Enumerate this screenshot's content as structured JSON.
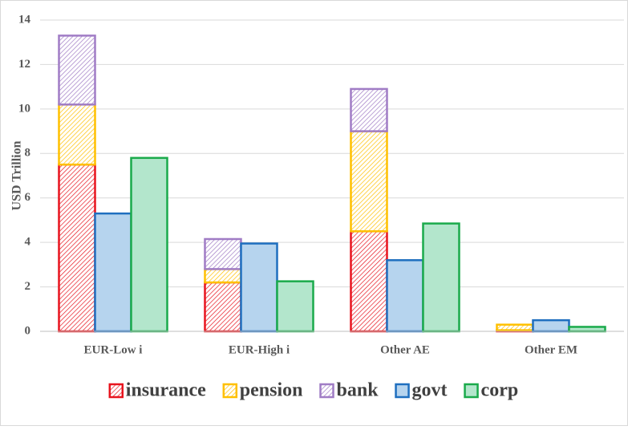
{
  "chart_data": {
    "type": "bar",
    "categories": [
      "EUR-Low i",
      "EUR-High i",
      "Other AE",
      "Other EM"
    ],
    "series": [
      {
        "name": "insurance",
        "color": "#e8141e",
        "stack": true,
        "hatch": true,
        "values": [
          7.5,
          2.2,
          4.5,
          0.05
        ]
      },
      {
        "name": "pension",
        "color": "#ffc000",
        "stack": true,
        "hatch": true,
        "values": [
          2.7,
          0.6,
          4.5,
          0.25
        ]
      },
      {
        "name": "bank",
        "color": "#a07cc5",
        "stack": true,
        "hatch": true,
        "values": [
          3.1,
          1.35,
          1.9,
          0
        ]
      },
      {
        "name": "govt",
        "color": "#1f6fbf",
        "fill": "#b6d4ee",
        "values": [
          5.3,
          3.95,
          3.2,
          0.5
        ]
      },
      {
        "name": "corp",
        "color": "#1aaa4b",
        "fill": "#b3e6cc",
        "values": [
          7.8,
          2.25,
          4.85,
          0.2
        ]
      }
    ],
    "ylabel": "USD Trillion",
    "ylim": [
      0,
      14
    ],
    "yticks": [
      0,
      2,
      4,
      6,
      8,
      10,
      12,
      14
    ],
    "grid": true,
    "legend": "bottom"
  }
}
